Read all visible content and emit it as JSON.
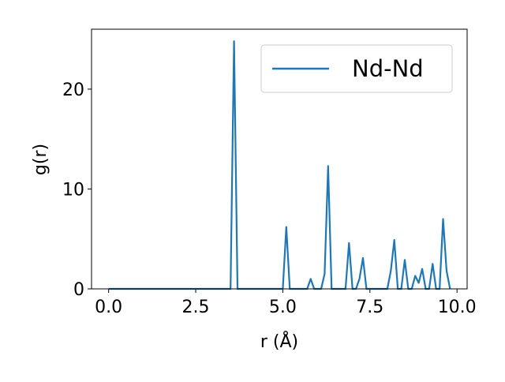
{
  "chart_data": {
    "type": "line",
    "xlabel": "r (Å)",
    "ylabel": "g(r)",
    "x": [
      0,
      0.1,
      0.2,
      0.3,
      0.4,
      0.5,
      0.6,
      0.7,
      0.8,
      0.9,
      1.0,
      1.1,
      1.2,
      1.3,
      1.4,
      1.5,
      1.6,
      1.7,
      1.8,
      1.9,
      2.0,
      2.1,
      2.2,
      2.3,
      2.4,
      2.5,
      2.6,
      2.7,
      2.8,
      2.9,
      3.0,
      3.1,
      3.2,
      3.3,
      3.4,
      3.5,
      3.6,
      3.7,
      3.8,
      3.9,
      4.0,
      4.1,
      4.2,
      4.3,
      4.4,
      4.5,
      4.6,
      4.7,
      4.8,
      4.9,
      5.0,
      5.1,
      5.2,
      5.3,
      5.4,
      5.5,
      5.6,
      5.7,
      5.8,
      5.9,
      6.0,
      6.1,
      6.2,
      6.3,
      6.4,
      6.5,
      6.6,
      6.7,
      6.8,
      6.9,
      7.0,
      7.1,
      7.2,
      7.3,
      7.4,
      7.5,
      7.6,
      7.7,
      7.8,
      7.9,
      8.0,
      8.1,
      8.2,
      8.3,
      8.4,
      8.5,
      8.6,
      8.7,
      8.8,
      8.9,
      9.0,
      9.1,
      9.2,
      9.3,
      9.4,
      9.5,
      9.6,
      9.7,
      9.8
    ],
    "series": [
      {
        "name": "Nd-Nd",
        "color": "#1f77b4",
        "values": [
          0,
          0,
          0,
          0,
          0,
          0,
          0,
          0,
          0,
          0,
          0,
          0,
          0,
          0,
          0,
          0,
          0,
          0,
          0,
          0,
          0,
          0,
          0,
          0,
          0,
          0,
          0,
          0,
          0,
          0,
          0,
          0,
          0,
          0,
          0,
          0,
          24.8,
          0,
          0,
          0,
          0,
          0,
          0,
          0,
          0,
          0,
          0,
          0,
          0,
          0,
          0,
          6.2,
          0,
          0,
          0,
          0,
          0,
          0,
          1.0,
          0,
          0,
          0,
          1.5,
          12.3,
          0,
          0,
          0,
          0,
          0,
          4.6,
          0,
          0,
          1.0,
          3.1,
          0,
          0,
          0,
          0,
          0,
          0,
          0,
          1.8,
          4.9,
          0,
          0,
          2.9,
          0,
          0,
          1.3,
          0.6,
          2.0,
          0,
          0,
          2.5,
          0,
          0,
          7.0,
          1.8,
          0
        ]
      }
    ],
    "xlim": [
      -0.49,
      10.29
    ],
    "xticks": [
      {
        "value": 0,
        "label": "0.0"
      },
      {
        "value": 2.5,
        "label": "2.5"
      },
      {
        "value": 5,
        "label": "5.0"
      },
      {
        "value": 7.5,
        "label": "7.5"
      },
      {
        "value": 10,
        "label": "10.0"
      }
    ],
    "ylim": [
      0,
      26
    ],
    "yticks": [
      0,
      10,
      20
    ],
    "legend": "upper right"
  }
}
